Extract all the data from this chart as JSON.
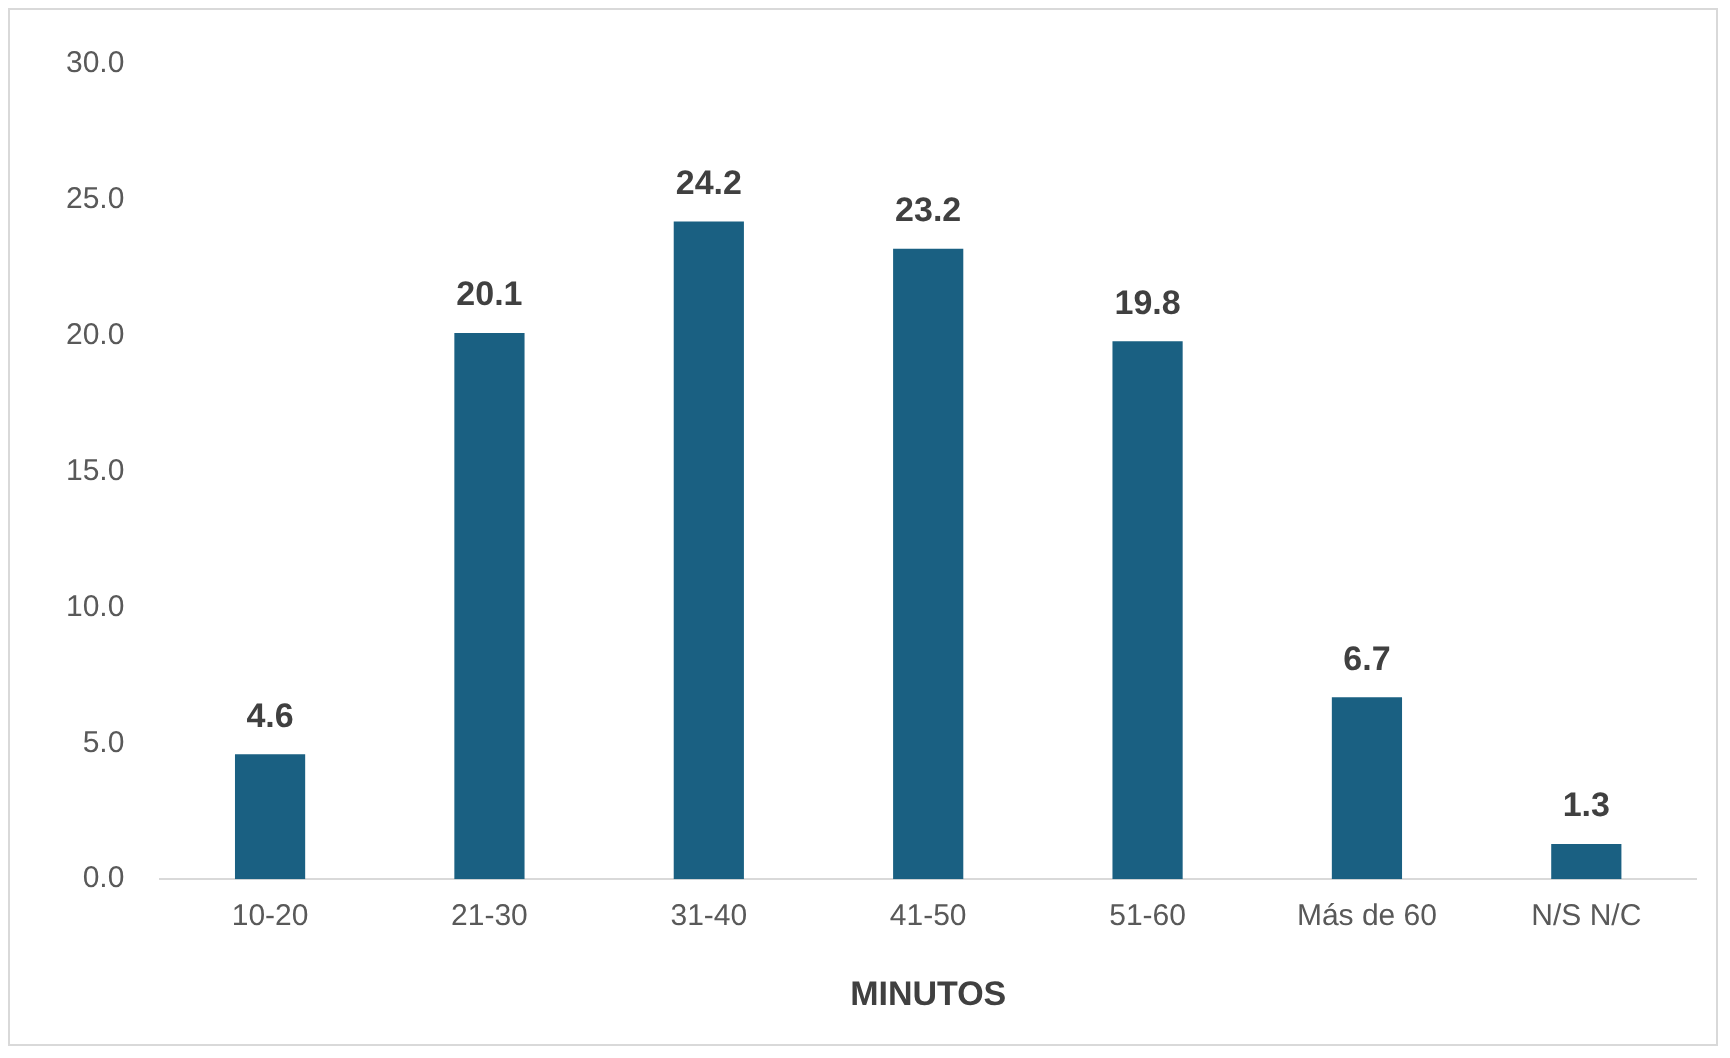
{
  "chart_data": {
    "type": "bar",
    "xlabel": "MINUTOS",
    "categories": [
      "10-20",
      "21-30",
      "31-40",
      "41-50",
      "51-60",
      "Más de 60",
      "N/S N/C"
    ],
    "values": [
      4.6,
      20.1,
      24.2,
      23.2,
      19.8,
      6.7,
      1.3
    ],
    "color": "#1a6082",
    "ylim": [
      0,
      30
    ],
    "yticks": [
      {
        "value": 0,
        "label": "0.0"
      },
      {
        "value": 5,
        "label": "5.0"
      },
      {
        "value": 10,
        "label": "10.0"
      },
      {
        "value": 15,
        "label": "15.0"
      },
      {
        "value": 20,
        "label": "20.0"
      },
      {
        "value": 25,
        "label": "25.0"
      },
      {
        "value": 30,
        "label": "30.0"
      }
    ],
    "grid": false,
    "legend": false,
    "data_labels": true
  }
}
